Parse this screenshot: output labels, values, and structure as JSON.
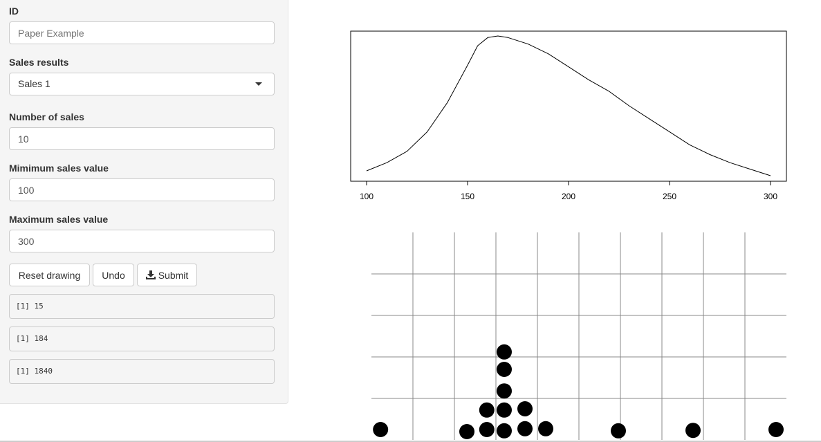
{
  "sidebar": {
    "id": {
      "label": "ID",
      "placeholder": "Paper Example",
      "value": ""
    },
    "sales_results": {
      "label": "Sales results",
      "selected": "Sales 1"
    },
    "num_sales": {
      "label": "Number of sales",
      "value": "10"
    },
    "min_value": {
      "label": "Mimimum sales value",
      "value": "100"
    },
    "max_value": {
      "label": "Maximum sales value",
      "value": "300"
    },
    "buttons": {
      "reset": "Reset drawing",
      "undo": "Undo",
      "submit": "Submit"
    },
    "outputs": [
      "[1] 15",
      "[1] 184",
      "[1] 1840"
    ]
  },
  "colors": {
    "sidebar_bg": "#f5f5f5",
    "border": "#cccccc",
    "grid": "#888888",
    "dot": "#000000"
  },
  "chart_data": [
    {
      "type": "line",
      "xlim": [
        100,
        300
      ],
      "x_ticks": [
        100,
        150,
        200,
        250,
        300
      ],
      "grid": false,
      "series": [
        {
          "x": [
            100,
            110,
            120,
            130,
            140,
            150,
            155,
            160,
            165,
            170,
            180,
            190,
            200,
            210,
            220,
            230,
            240,
            250,
            260,
            270,
            280,
            290,
            300
          ],
          "y": [
            0.03,
            0.08,
            0.15,
            0.27,
            0.45,
            0.68,
            0.8,
            0.85,
            0.86,
            0.85,
            0.81,
            0.75,
            0.67,
            0.59,
            0.52,
            0.43,
            0.35,
            0.27,
            0.19,
            0.13,
            0.08,
            0.04,
            0.0
          ]
        }
      ]
    },
    {
      "type": "scatter",
      "grid": true,
      "xlim": [
        0,
        10
      ],
      "ylim": [
        0,
        5
      ],
      "points": [
        [
          0.22,
          0.25
        ],
        [
          2.3,
          0.2
        ],
        [
          2.78,
          0.25
        ],
        [
          2.78,
          0.72
        ],
        [
          3.2,
          0.22
        ],
        [
          3.2,
          0.72
        ],
        [
          3.2,
          1.18
        ],
        [
          3.2,
          1.7
        ],
        [
          3.2,
          2.12
        ],
        [
          3.7,
          0.27
        ],
        [
          3.7,
          0.75
        ],
        [
          4.2,
          0.27
        ],
        [
          5.95,
          0.22
        ],
        [
          7.75,
          0.23
        ],
        [
          9.75,
          0.25
        ]
      ]
    }
  ]
}
